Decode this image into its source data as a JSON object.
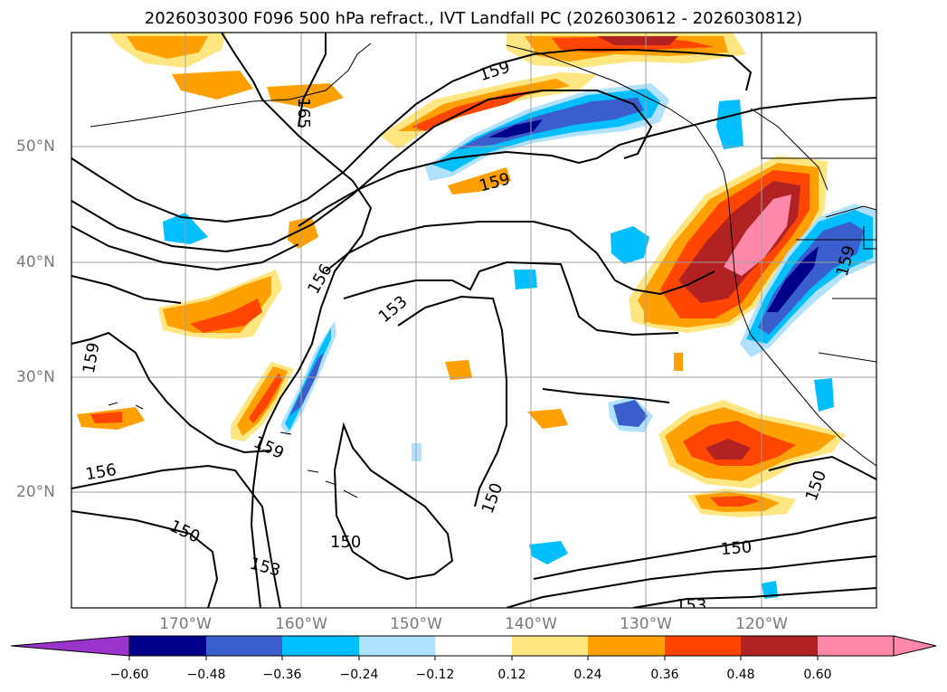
{
  "title": "2026030300 F096 500 hPa refract., IVT Landfall PC (2026030612 - 2026030812)",
  "lon_labels": [
    "170°W",
    "160°W",
    "150°W",
    "140°W",
    "130°W",
    "120°W"
  ],
  "lat_labels": [
    "50°N",
    "40°N",
    "30°N",
    "20°N"
  ],
  "contour_labels": [
    "165",
    "159",
    "159",
    "156",
    "153",
    "159",
    "159",
    "156",
    "150",
    "150",
    "150",
    "153",
    "150",
    "150",
    "153",
    "159"
  ],
  "colorbar": {
    "ticks": [
      "−0.60",
      "−0.48",
      "−0.36",
      "−0.24",
      "−0.12",
      "0.12",
      "0.24",
      "0.36",
      "0.48",
      "0.60"
    ],
    "colors": [
      "#9933cc",
      "#00008b",
      "#3a5fcd",
      "#00bfff",
      "#b0e2ff",
      "#ffffff",
      "#ffe680",
      "#ffa000",
      "#ff4500",
      "#b22222",
      "#ff88aa",
      "#ff88aa"
    ]
  },
  "anomaly_colors": {
    "neg_strong": "#00008b",
    "neg_mid": "#3a5fcd",
    "neg_light": "#00bfff",
    "neg_pale": "#b0e2ff",
    "pos_pale": "#ffe680",
    "pos_light": "#ffa000",
    "pos_mid": "#ff4500",
    "pos_strong": "#b22222",
    "pos_max": "#ff88aa"
  }
}
